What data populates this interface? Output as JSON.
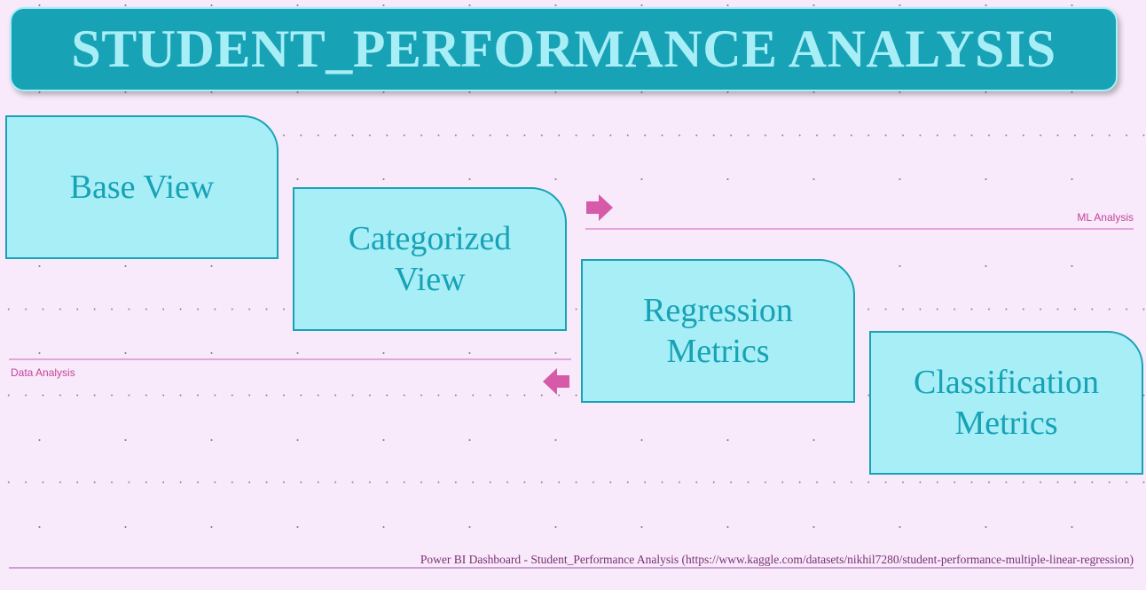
{
  "title": "STUDENT_PERFORMANCE ANALYSIS",
  "nav_cards": {
    "base_view": "Base View",
    "categorized_view": "Categorized View",
    "regression_metrics": "Regression Metrics",
    "classification_metrics": "Classification Metrics"
  },
  "sections": {
    "ml_analysis": "ML Analysis",
    "data_analysis": "Data Analysis"
  },
  "icons": {
    "next": "arrow-right-icon",
    "back": "arrow-left-icon"
  },
  "footer": "Power BI Dashboard - Student_Performance Analysis (https://www.kaggle.com/datasets/nikhil7280/student-performance-multiple-linear-regression)",
  "colors": {
    "background": "#f8eafa",
    "banner": "#17a2b5",
    "card_fill": "#a7eef7",
    "accent_pink": "#d65aa8",
    "divider": "#e3a6dc"
  }
}
